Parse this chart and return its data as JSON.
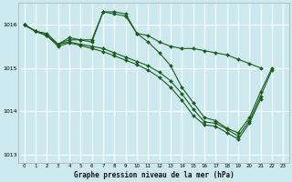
{
  "title": "Graphe pression niveau de la mer (hPa)",
  "background_color": "#cde9f0",
  "grid_color": "#ffffff",
  "line_color": "#1a5c1a",
  "ylim": [
    1012.8,
    1016.5
  ],
  "xlim": [
    -0.5,
    23.5
  ],
  "yticks": [
    1013,
    1014,
    1015,
    1016
  ],
  "xticks": [
    0,
    1,
    2,
    3,
    4,
    5,
    6,
    7,
    8,
    9,
    10,
    11,
    12,
    13,
    14,
    15,
    16,
    17,
    18,
    19,
    20,
    21,
    22,
    23
  ],
  "lines": [
    {
      "x": [
        0,
        1,
        2,
        3,
        4,
        5,
        6,
        7,
        8,
        9,
        10,
        11,
        12,
        13,
        14,
        15,
        16,
        17,
        18,
        19,
        20,
        21
      ],
      "y": [
        1016.0,
        1015.85,
        1015.75,
        1015.55,
        1015.7,
        1015.65,
        1015.65,
        1016.3,
        1016.3,
        1016.25,
        1015.8,
        1015.75,
        1015.6,
        1015.5,
        1015.45,
        1015.45,
        1015.4,
        1015.35,
        1015.3,
        1015.2,
        1015.1,
        1015.0
      ]
    },
    {
      "x": [
        0,
        1,
        2,
        3,
        4,
        5,
        6,
        7,
        8,
        9,
        10,
        11,
        12,
        13,
        14,
        15,
        16,
        17,
        18,
        19,
        20,
        21,
        22
      ],
      "y": [
        1016.0,
        1015.85,
        1015.8,
        1015.55,
        1015.65,
        1015.65,
        1015.6,
        1016.3,
        1016.25,
        1016.2,
        1015.8,
        1015.6,
        1015.35,
        1015.05,
        1014.55,
        1014.2,
        1013.85,
        1013.78,
        1013.6,
        1013.5,
        1013.85,
        1014.45,
        1015.0
      ]
    },
    {
      "x": [
        0,
        1,
        2,
        3,
        4,
        5,
        6,
        7,
        8,
        9,
        10,
        11,
        12,
        13,
        14,
        15,
        16,
        17,
        18,
        19,
        20,
        21,
        22
      ],
      "y": [
        1016.0,
        1015.85,
        1015.75,
        1015.55,
        1015.6,
        1015.55,
        1015.5,
        1015.45,
        1015.35,
        1015.25,
        1015.15,
        1015.05,
        1014.9,
        1014.7,
        1014.4,
        1014.05,
        1013.75,
        1013.72,
        1013.58,
        1013.42,
        1013.78,
        1014.35,
        1014.95
      ]
    },
    {
      "x": [
        0,
        1,
        2,
        3,
        4,
        5,
        6,
        7,
        8,
        9,
        10,
        11,
        12,
        13,
        14,
        15,
        16,
        17,
        18,
        19,
        20,
        21
      ],
      "y": [
        1016.0,
        1015.85,
        1015.75,
        1015.5,
        1015.58,
        1015.52,
        1015.45,
        1015.38,
        1015.28,
        1015.18,
        1015.08,
        1014.95,
        1014.78,
        1014.55,
        1014.25,
        1013.9,
        1013.68,
        1013.65,
        1013.5,
        1013.35,
        1013.72,
        1014.28
      ]
    }
  ]
}
